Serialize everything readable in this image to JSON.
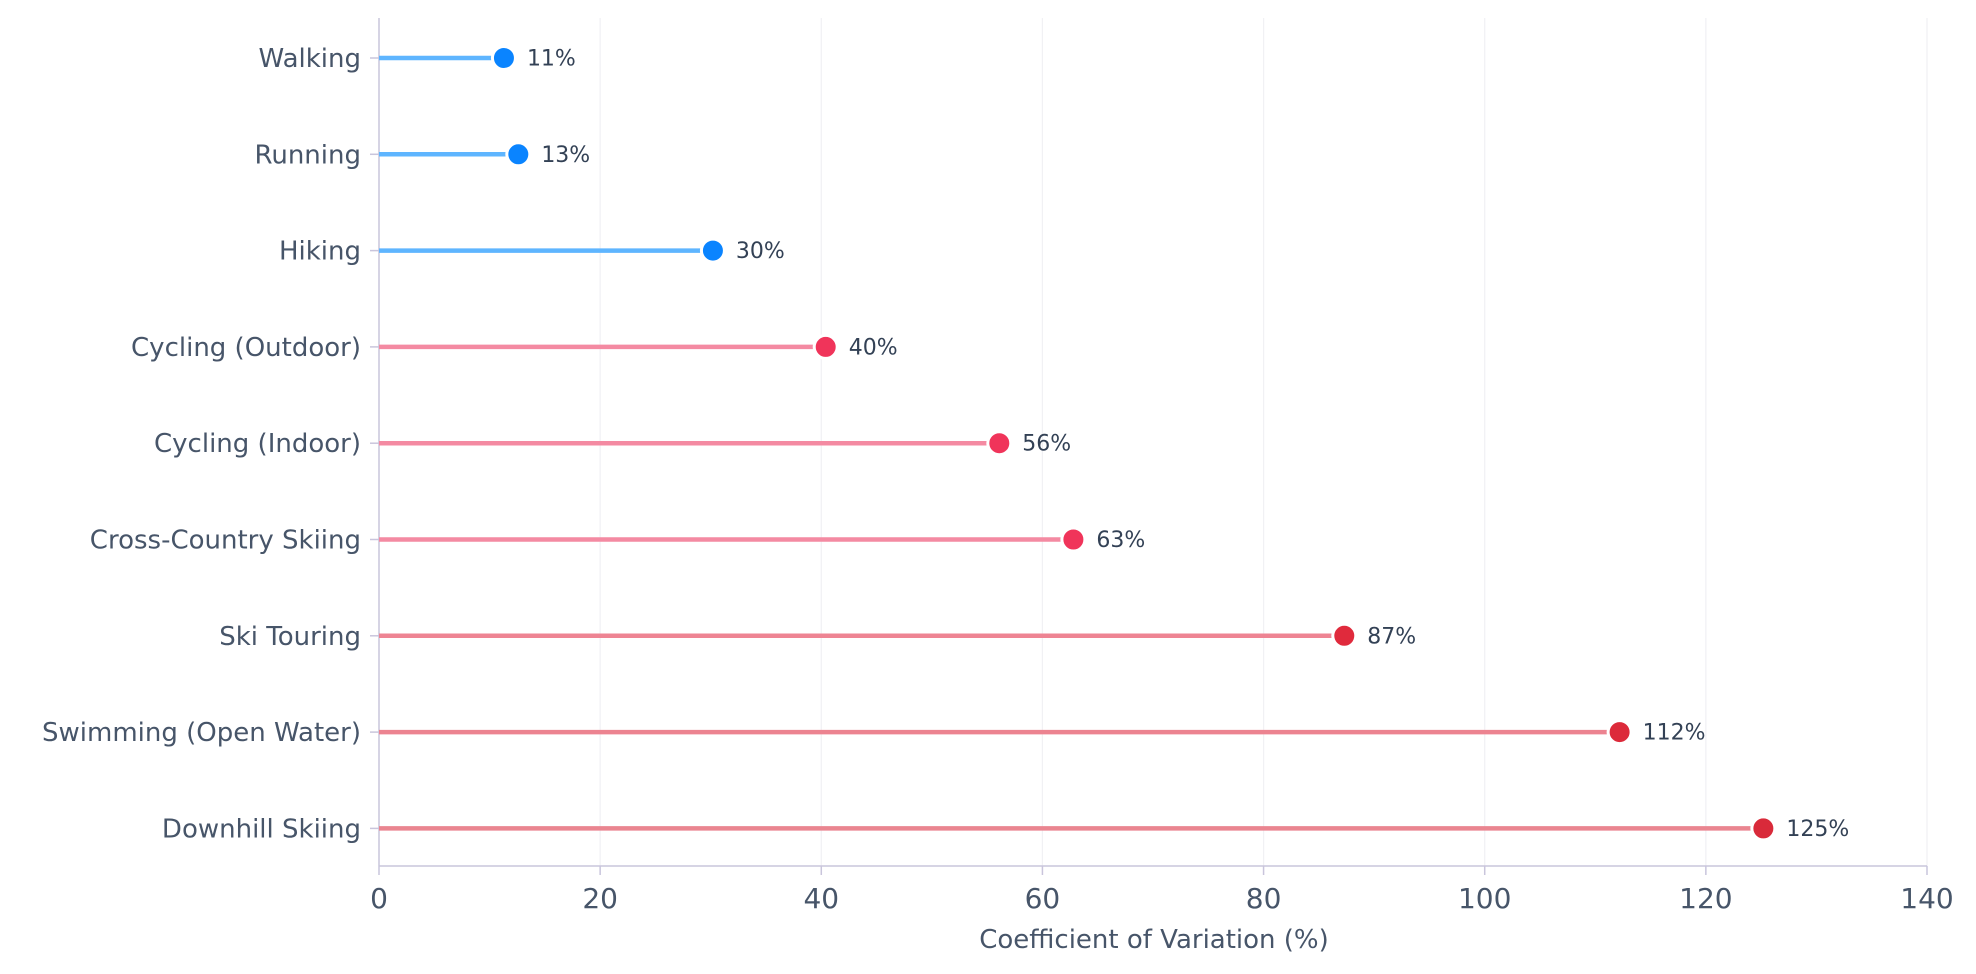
{
  "chart_data": {
    "type": "lollipop",
    "orientation": "horizontal",
    "categories": [
      "Walking",
      "Running",
      "Hiking",
      "Cycling (Outdoor)",
      "Cycling (Indoor)",
      "Cross-Country Skiing",
      "Ski Touring",
      "Swimming (Open Water)",
      "Downhill Skiing"
    ],
    "values": [
      11.3,
      12.6,
      30.2,
      40.4,
      56.1,
      62.8,
      87.3,
      112.2,
      125.2
    ],
    "value_labels": [
      "11%",
      "13%",
      "30%",
      "40%",
      "56%",
      "63%",
      "87%",
      "112%",
      "125%"
    ],
    "point_colors": [
      "#0a84ff",
      "#0a84ff",
      "#0a84ff",
      "#f0345a",
      "#f0345a",
      "#f0345a",
      "#e02a3c",
      "#dc2a3a",
      "#d92a3a"
    ],
    "line_colors": [
      "#5eb5ff",
      "#5eb5ff",
      "#5eb5ff",
      "#f48aa2",
      "#f48aa2",
      "#f48aa2",
      "#ee8493",
      "#ec8390",
      "#ea8590"
    ],
    "xlabel": "Coefficient of Variation (%)",
    "ylabel": "",
    "xlim": [
      0,
      140
    ],
    "xticks": [
      0,
      20,
      40,
      60,
      80,
      100,
      120,
      140
    ],
    "grid": "vertical, faint",
    "legend": "none",
    "axis_color": "#c9c5dc",
    "grid_color": "#f1f1f4"
  }
}
